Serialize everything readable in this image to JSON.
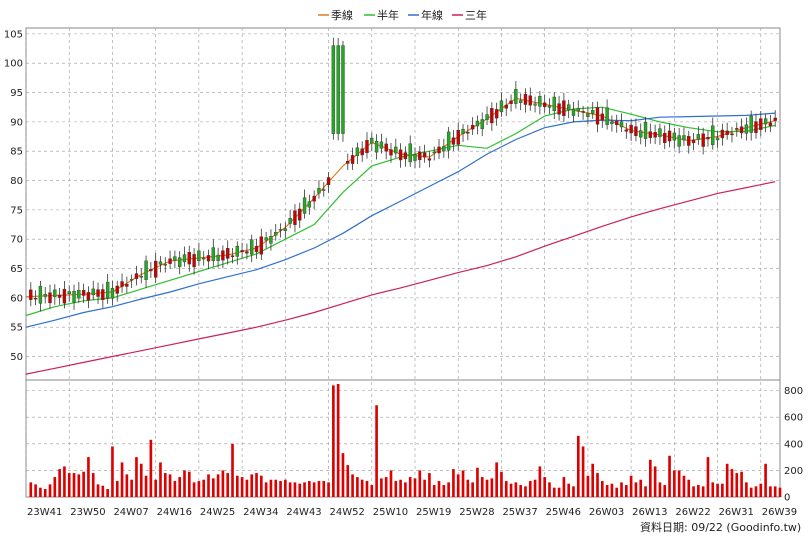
{
  "colors": {
    "up_candle": "#22aa22",
    "down_candle": "#cc0000",
    "quarter_ma": "#e07b20",
    "half_ma": "#2fbf2f",
    "year_ma": "#2f6fd0",
    "three_year_ma": "#cc1f5f",
    "volume_bar": "#dd0000",
    "grid": "#999999"
  },
  "source_label": "資料日期: 09/22  (Goodinfo.tw)",
  "chart_data": [
    {
      "type": "candlestick",
      "series": [
        {
          "name": "季線",
          "color_key": "quarter_ma",
          "x": [
            0,
            6,
            12,
            18,
            24,
            30,
            36,
            42,
            48,
            54,
            60,
            66,
            72,
            78,
            84,
            90,
            96,
            102,
            108,
            114,
            120,
            126,
            132,
            138,
            144,
            150,
            156
          ],
          "values": [
            60.2,
            60.4,
            60.6,
            61,
            64,
            66.3,
            66.8,
            67.3,
            68.5,
            72,
            77,
            82.5,
            86.5,
            84.5,
            84,
            87.5,
            90.5,
            94,
            93,
            92,
            91,
            88.5,
            87.8,
            86.8,
            87.5,
            89,
            90.2
          ]
        },
        {
          "name": "半年",
          "color_key": "half_ma",
          "x": [
            0,
            6,
            12,
            18,
            24,
            30,
            36,
            42,
            48,
            54,
            60,
            66,
            72,
            78,
            84,
            90,
            96,
            102,
            108,
            114,
            120,
            126,
            132,
            138,
            144,
            150,
            156
          ],
          "values": [
            57,
            58.5,
            59.5,
            60,
            61.5,
            63,
            64.5,
            66,
            67.5,
            70,
            72.5,
            78,
            82.5,
            84,
            85,
            86,
            85.5,
            88,
            91,
            92.2,
            92.5,
            91.3,
            90,
            89,
            88.3,
            88.4,
            89.4
          ]
        },
        {
          "name": "年線",
          "color_key": "year_ma",
          "x": [
            0,
            6,
            12,
            18,
            24,
            30,
            36,
            42,
            48,
            54,
            60,
            66,
            72,
            78,
            84,
            90,
            96,
            102,
            108,
            114,
            120,
            126,
            132,
            138,
            144,
            150,
            156
          ],
          "values": [
            55,
            56.2,
            57.5,
            58.5,
            59.8,
            61,
            62.4,
            63.6,
            64.8,
            66.5,
            68.5,
            71,
            74,
            76.5,
            79,
            81.5,
            84.5,
            87,
            89,
            90,
            90.3,
            90.2,
            90.8,
            90.9,
            91,
            91.1,
            91.5
          ]
        },
        {
          "name": "三年",
          "color_key": "three_year_ma",
          "x": [
            0,
            6,
            12,
            18,
            24,
            30,
            36,
            42,
            48,
            54,
            60,
            66,
            72,
            78,
            84,
            90,
            96,
            102,
            108,
            114,
            120,
            126,
            132,
            138,
            144,
            150,
            156
          ],
          "values": [
            47,
            48,
            49,
            50,
            51,
            52,
            53,
            54,
            55,
            56.2,
            57.5,
            59,
            60.5,
            61.7,
            63,
            64.3,
            65.5,
            67,
            68.8,
            70.5,
            72.2,
            73.8,
            75.2,
            76.5,
            77.8,
            78.8,
            79.8
          ]
        }
      ],
      "yticks": [
        50,
        55,
        60,
        65,
        70,
        75,
        80,
        85,
        90,
        95,
        100,
        105
      ],
      "ylim": [
        46,
        106
      ],
      "xlim": [
        0,
        157
      ],
      "grid": true,
      "legend_position": "top-center"
    },
    {
      "type": "bar",
      "series": [
        {
          "values": [
            110,
            95,
            70,
            60,
            95,
            150,
            210,
            230,
            180,
            180,
            170,
            190,
            300,
            180,
            95,
            85,
            60,
            380,
            120,
            260,
            170,
            130,
            300,
            250,
            160,
            430,
            130,
            260,
            180,
            170,
            120,
            150,
            200,
            190,
            110,
            120,
            130,
            170,
            140,
            170,
            200,
            180,
            400,
            160,
            150,
            130,
            170,
            180,
            160,
            110,
            130,
            130,
            120,
            130,
            110,
            110,
            100,
            110,
            120,
            110,
            120,
            120,
            110,
            840,
            850,
            330,
            240,
            170,
            150,
            130,
            120,
            90,
            690,
            140,
            150,
            200,
            120,
            130,
            110,
            150,
            140,
            200,
            130,
            180,
            90,
            120,
            90,
            110,
            210,
            170,
            200,
            130,
            110,
            220,
            150,
            130,
            140,
            260,
            190,
            120,
            100,
            110,
            90,
            80,
            120,
            130,
            230,
            150,
            110,
            70,
            70,
            150,
            100,
            80,
            460,
            380,
            160,
            250,
            180,
            120,
            90,
            100,
            70,
            110,
            90,
            160,
            110,
            130,
            80,
            280,
            230,
            110,
            90,
            310,
            200,
            200,
            160,
            130,
            80,
            90,
            80,
            300,
            110,
            100,
            100,
            250,
            210,
            180,
            190,
            110,
            70,
            80,
            100,
            250,
            80,
            80,
            70
          ]
        }
      ],
      "yticks": [
        0,
        200,
        400,
        600,
        800
      ],
      "ylim": [
        0,
        880
      ],
      "xlim": [
        0,
        157
      ],
      "grid": true
    }
  ],
  "x_tick_labels": [
    "23W41",
    "23W50",
    "24W07",
    "24W16",
    "24W25",
    "24W34",
    "24W43",
    "24W52",
    "25W10",
    "25W19",
    "25W28",
    "25W37",
    "25W46",
    "26W03",
    "26W13",
    "26W22",
    "26W31",
    "26W39"
  ],
  "x_tick_positions": [
    0,
    9,
    18,
    27,
    36,
    45,
    54,
    63,
    72,
    81,
    90,
    99,
    108,
    117,
    126,
    135,
    144,
    153
  ]
}
